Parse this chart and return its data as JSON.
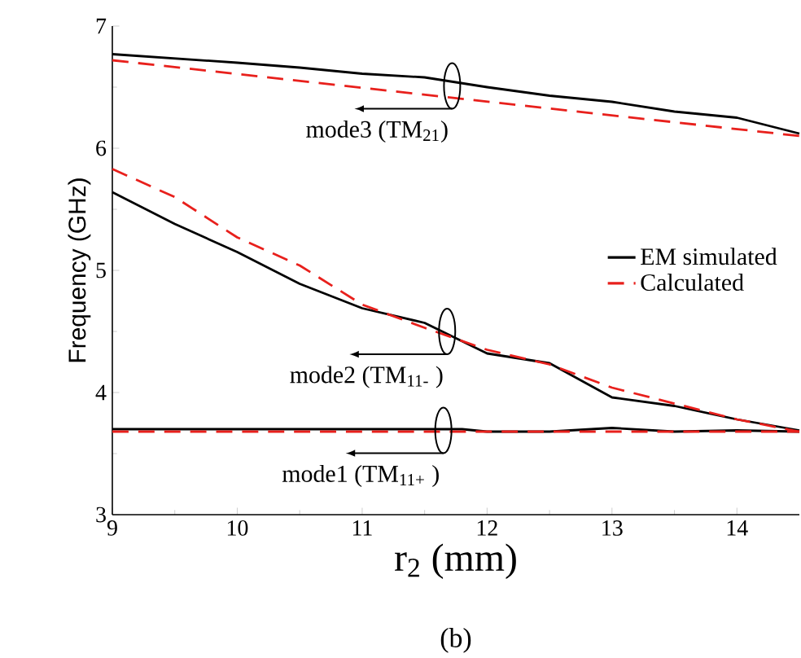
{
  "chart_data": {
    "type": "line",
    "xlabel": "r$_{2}$ (mm)",
    "ylabel": "Frequency (GHz)",
    "xlim": [
      9,
      14.5
    ],
    "ylim": [
      3,
      7
    ],
    "xticks": [
      9,
      10,
      11,
      12,
      13,
      14
    ],
    "yticks": [
      3,
      4,
      5,
      6,
      7
    ],
    "grid": false,
    "legend": "right",
    "marker": "none",
    "series": [
      {
        "name": "EM simulated",
        "color": "#000000",
        "line_style": "solid",
        "x": [
          9,
          10,
          10.5,
          11,
          11.5,
          12,
          12.5,
          13,
          13.5,
          14,
          14.5
        ],
        "values": [
          6.77,
          6.7,
          6.66,
          6.61,
          6.58,
          6.5,
          6.43,
          6.38,
          6.3,
          6.25,
          6.12
        ]
      },
      {
        "color": "#000000",
        "line_style": "solid",
        "x": [
          9,
          9.5,
          10,
          10.5,
          11,
          11.5,
          12,
          12.5,
          13,
          13.5,
          14,
          14.5
        ],
        "values": [
          5.64,
          5.38,
          5.15,
          4.89,
          4.69,
          4.57,
          4.32,
          4.24,
          3.96,
          3.89,
          3.78,
          3.69
        ]
      },
      {
        "color": "#000000",
        "line_style": "solid",
        "x": [
          9,
          11.8,
          12,
          12.5,
          13,
          13.5,
          14,
          14.5
        ],
        "values": [
          3.7,
          3.7,
          3.68,
          3.68,
          3.71,
          3.68,
          3.69,
          3.68
        ]
      },
      {
        "name": "Calculated",
        "color": "#e8201c",
        "line_style": "dashed",
        "x": [
          9,
          14.5
        ],
        "values": [
          6.72,
          6.1
        ]
      },
      {
        "color": "#e8201c",
        "line_style": "dashed",
        "x": [
          9,
          9.5,
          10,
          10.5,
          11,
          11.5,
          12,
          12.5,
          13,
          13.5,
          14,
          14.5
        ],
        "values": [
          5.83,
          5.6,
          5.27,
          5.04,
          4.72,
          4.53,
          4.35,
          4.23,
          4.04,
          3.91,
          3.78,
          3.68
        ]
      },
      {
        "color": "#e8201c",
        "line_style": "dashed",
        "x": [
          9,
          14.5
        ],
        "values": [
          3.68,
          3.68
        ]
      }
    ],
    "annotations": [
      {
        "text": "mode3 (TM$_{21}$)",
        "x": 11.72,
        "y": 6.51
      },
      {
        "text": "mode2 (TM$_{11-}$ )",
        "x": 11.68,
        "y": 4.5
      },
      {
        "text": "mode1 (TM$_{11+}$ )",
        "x": 11.65,
        "y": 3.69
      },
      "(b)"
    ]
  }
}
